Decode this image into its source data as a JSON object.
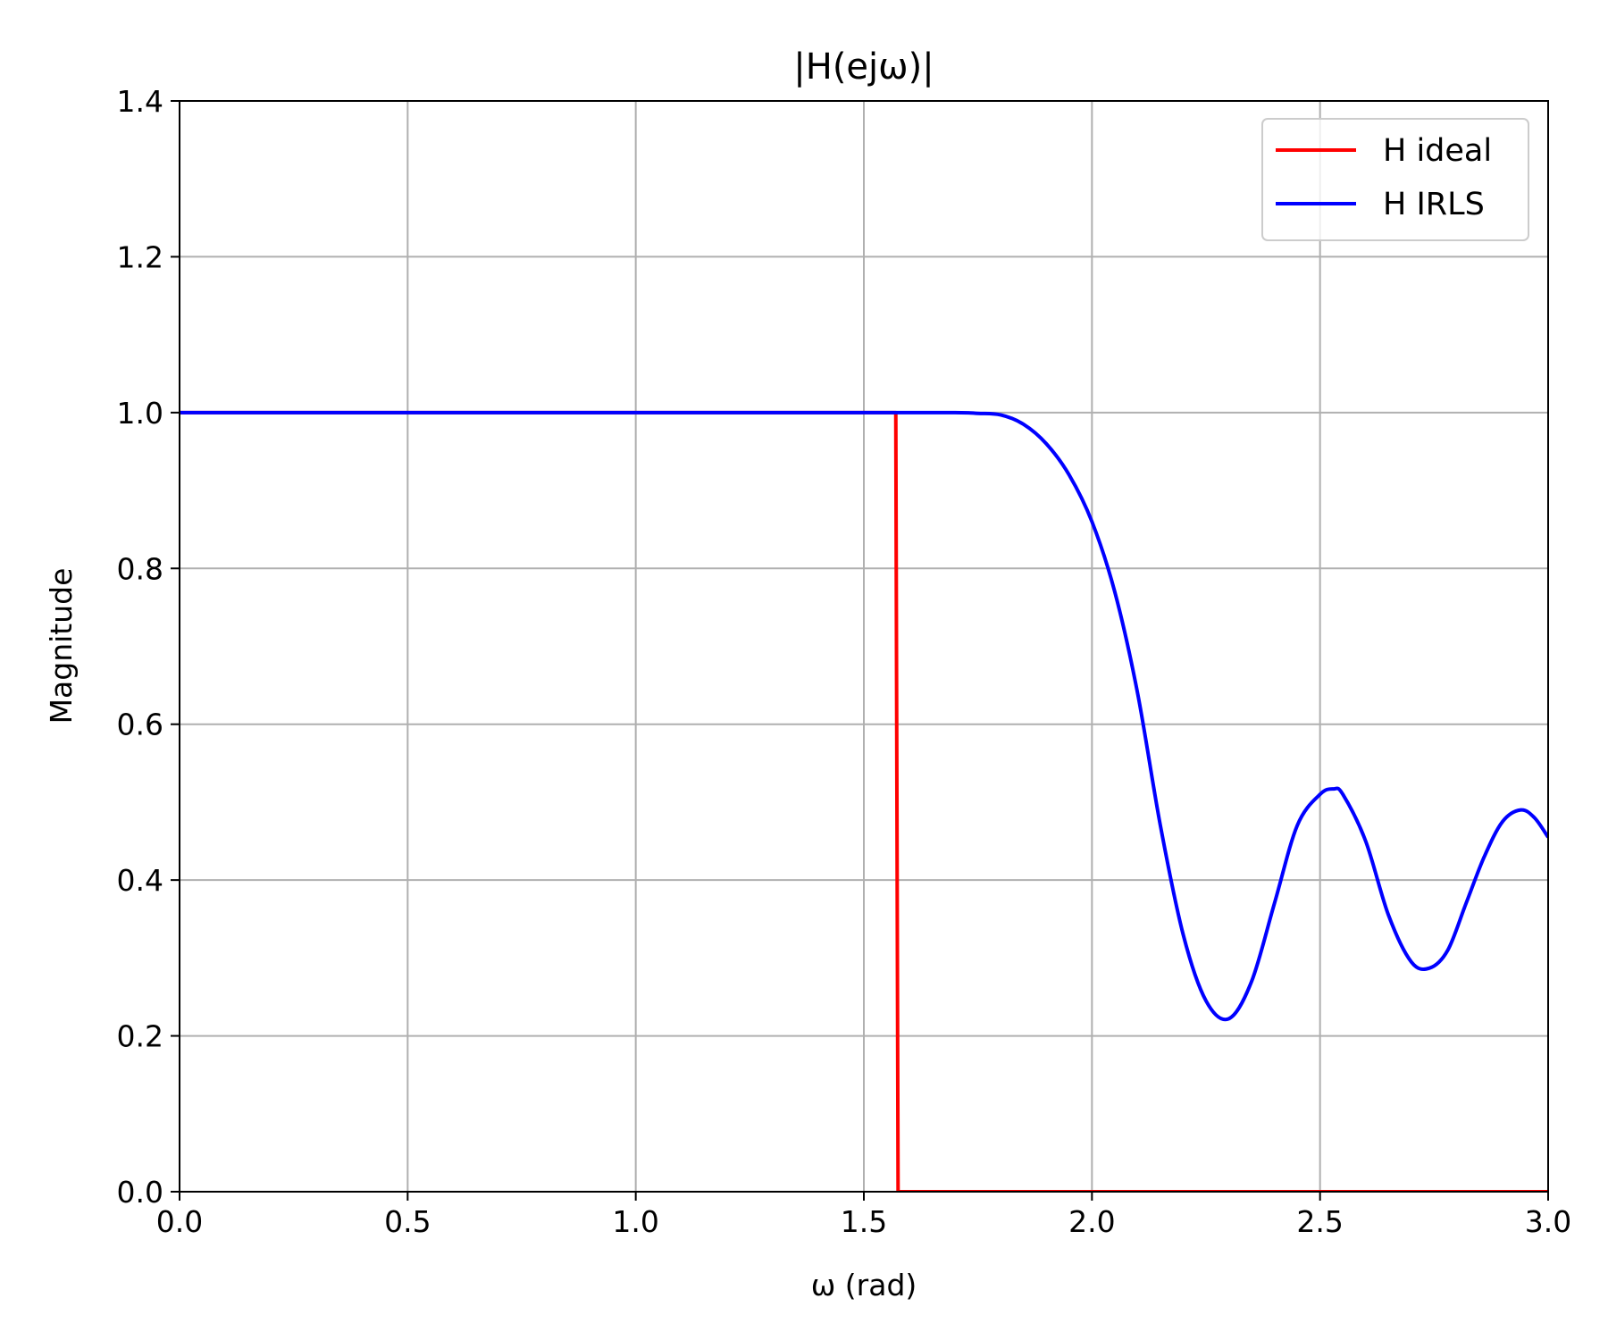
{
  "chart_data": {
    "type": "line",
    "title": "|H(ejω)|",
    "xlabel": "ω (rad)",
    "ylabel": "Magnitude",
    "xlim": [
      0.0,
      3.0
    ],
    "ylim": [
      0.0,
      1.4
    ],
    "xticks": [
      "0.0",
      "0.5",
      "1.0",
      "1.5",
      "2.0",
      "2.5",
      "3.0"
    ],
    "yticks": [
      "0.0",
      "0.2",
      "0.4",
      "0.6",
      "0.8",
      "1.0",
      "1.2",
      "1.4"
    ],
    "grid": true,
    "legend_position": "top-right",
    "series": [
      {
        "name": "H ideal",
        "color": "#ff0000",
        "x": [
          0.0,
          1.57,
          1.575,
          3.0
        ],
        "y": [
          1.0,
          1.0,
          0.0,
          0.0
        ]
      },
      {
        "name": "H IRLS",
        "color": "#0000ff",
        "x": [
          0.0,
          1.0,
          1.5,
          1.7,
          1.75,
          1.8,
          1.85,
          1.9,
          1.95,
          2.0,
          2.05,
          2.1,
          2.15,
          2.2,
          2.25,
          2.3,
          2.35,
          2.4,
          2.45,
          2.5,
          2.53,
          2.55,
          2.6,
          2.65,
          2.7,
          2.74,
          2.78,
          2.82,
          2.86,
          2.9,
          2.94,
          2.97,
          3.0
        ],
        "y": [
          1.0,
          1.0,
          1.0,
          1.0,
          0.999,
          0.997,
          0.985,
          0.96,
          0.92,
          0.86,
          0.77,
          0.64,
          0.47,
          0.33,
          0.245,
          0.222,
          0.27,
          0.37,
          0.47,
          0.51,
          0.517,
          0.51,
          0.45,
          0.355,
          0.295,
          0.287,
          0.31,
          0.37,
          0.43,
          0.475,
          0.49,
          0.48,
          0.455
        ]
      }
    ]
  }
}
